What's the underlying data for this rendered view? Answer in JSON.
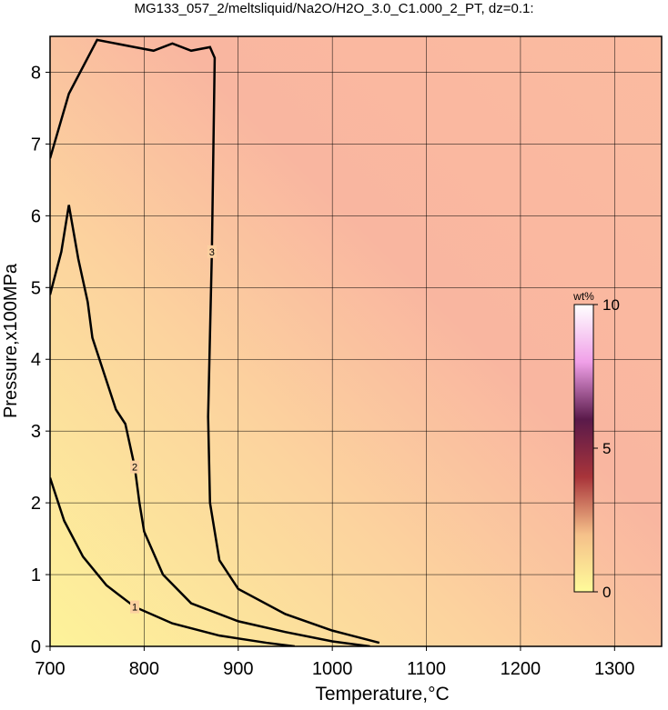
{
  "chart_data": {
    "type": "contour",
    "title": "MG133_057_2/meltsliquid/Na2O/H2O_3.0_C1.000_2_PT, dz=0.1:",
    "x_label": "Temperature,°C",
    "y_label": "Pressure,x100MPa",
    "xlim": [
      700,
      1350
    ],
    "ylim": [
      0,
      8.5
    ],
    "xticks": [
      700,
      800,
      900,
      1000,
      1100,
      1200,
      1300
    ],
    "yticks": [
      0,
      1,
      2,
      3,
      4,
      5,
      6,
      7,
      8
    ],
    "grid": true,
    "series": [
      {
        "name": "1",
        "color": "#000000",
        "x": [
          700,
          715,
          735,
          760,
          790,
          830,
          880,
          930,
          960
        ],
        "y": [
          2.35,
          1.75,
          1.25,
          0.85,
          0.55,
          0.32,
          0.15,
          0.05,
          0
        ]
      },
      {
        "name": "2",
        "color": "#000000",
        "x": [
          700,
          712,
          720,
          730,
          740,
          745,
          760,
          770,
          780,
          790,
          795,
          800,
          820,
          850,
          900,
          950,
          1000,
          1040
        ],
        "y": [
          4.9,
          5.5,
          6.15,
          5.4,
          4.8,
          4.3,
          3.7,
          3.3,
          3.1,
          2.5,
          2.0,
          1.6,
          1.0,
          0.6,
          0.35,
          0.2,
          0.07,
          0
        ]
      },
      {
        "name": "3",
        "color": "#000000",
        "x": [
          700,
          720,
          750,
          790,
          810,
          830,
          850,
          870,
          875,
          872,
          868,
          870,
          880,
          900,
          950,
          1000,
          1050
        ],
        "y": [
          6.8,
          7.7,
          8.45,
          8.35,
          8.3,
          8.4,
          8.3,
          8.35,
          8.2,
          5.5,
          3.2,
          2.0,
          1.2,
          0.8,
          0.45,
          0.22,
          0.05
        ]
      }
    ],
    "colorbar": {
      "label": "wt%",
      "lim": [
        0,
        10
      ],
      "ticks": [
        0,
        5,
        10
      ],
      "colors": [
        "#fffb9a",
        "#f5c08a",
        "#a8343a",
        "#5a1a4a",
        "#f0a0e8",
        "#ffffff"
      ]
    }
  }
}
